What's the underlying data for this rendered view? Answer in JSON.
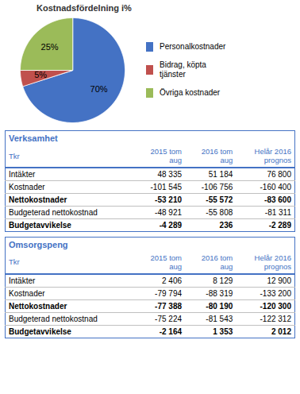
{
  "chart_data": [
    {
      "type": "pie",
      "title": "Kostnadsfördelning i%",
      "categories": [
        "Personalkostnader",
        "Bidrag, köpta\ntjänster",
        "Övriga kostnader"
      ],
      "values": [
        70,
        5,
        25
      ],
      "value_labels": [
        "70%",
        "5%",
        "25%"
      ],
      "colors": [
        "#4472C4",
        "#C0504D",
        "#9BBB59"
      ],
      "data_labels": true,
      "legend": "right"
    },
    {
      "type": "table",
      "title": "Verksamhet",
      "subtitle": "Tkr",
      "color": "#4472C4",
      "categories": [
        "Intäkter",
        "Kostnader",
        "Nettokostnader",
        "Budgeterad nettokostnad",
        "Budgetavvikelse"
      ],
      "series": [
        {
          "name": "2015 tom\naug",
          "values": [
            48335,
            -101545,
            -53210,
            -48921,
            -4289
          ],
          "value_labels": [
            "48 335",
            "-101 545",
            "-53 210",
            "-48 921",
            "-4 289"
          ]
        },
        {
          "name": "2016 tom\naug",
          "values": [
            51184,
            -106756,
            -55572,
            -55808,
            236
          ],
          "value_labels": [
            "51 184",
            "-106 756",
            "-55 572",
            "-55 808",
            "236"
          ]
        },
        {
          "name": "Helår 2016\nprognos",
          "values": [
            76800,
            -160400,
            -83600,
            -81311,
            -2289
          ],
          "value_labels": [
            "76 800",
            "-160 400",
            "-83 600",
            "-81 311",
            "-2 289"
          ]
        }
      ]
    },
    {
      "type": "table",
      "title": "Omsorgspeng",
      "subtitle": "Tkr",
      "color": "#4472C4",
      "categories": [
        "Intäkter",
        "Kostnader",
        "Nettokostnader",
        "Budgeterad nettokostnad",
        "Budgetavvikelse"
      ],
      "series": [
        {
          "name": "2015 tom\naug",
          "values": [
            2406,
            -79794,
            -77388,
            -75224,
            -2164
          ],
          "value_labels": [
            "2 406",
            "-79 794",
            "-77 388",
            "-75 224",
            "-2 164"
          ]
        },
        {
          "name": "2016 tom\naug",
          "values": [
            8129,
            -88319,
            -80190,
            -81543,
            1353
          ],
          "value_labels": [
            "8 129",
            "-88 319",
            "-80 190",
            "-81 543",
            "1 353"
          ]
        },
        {
          "name": "Helår 2016\nprognos",
          "values": [
            12900,
            -133200,
            -120300,
            -122312,
            2012
          ],
          "value_labels": [
            "12 900",
            "-133 200",
            "-120 300",
            "-122 312",
            "2 012"
          ]
        }
      ]
    }
  ]
}
